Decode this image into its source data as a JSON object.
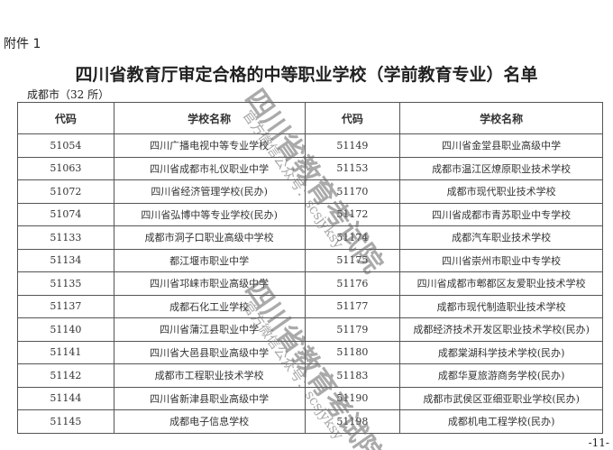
{
  "attachment": "附件 1",
  "title": "四川省教育厅审定合格的中等职业学校（学前教育专业）名单",
  "region": "成都市（32 所）",
  "headers": [
    "代码",
    "学校名称",
    "代码",
    "学校名称"
  ],
  "rows": [
    [
      "51054",
      "四川广播电视中等专业学校",
      "51149",
      "四川省金堂县职业高级中学"
    ],
    [
      "51063",
      "四川省成都市礼仪职业中学",
      "51153",
      "成都市温江区燎原职业技术学校"
    ],
    [
      "51072",
      "四川省经济管理学校(民办)",
      "51170",
      "成都市现代职业技术学校"
    ],
    [
      "51074",
      "四川省弘博中等专业学校(民办)",
      "51172",
      "四川省成都市青苏职业中专学校"
    ],
    [
      "51133",
      "成都市洞子口职业高级中学校",
      "51174",
      "成都汽车职业技术学校"
    ],
    [
      "51134",
      "都江堰市职业中学",
      "51175",
      "四川省崇州市职业中专学校"
    ],
    [
      "51135",
      "四川省邛崃市职业高级中学",
      "51176",
      "四川省成都市郫都区友爱职业技术学校"
    ],
    [
      "51137",
      "成都石化工业学校",
      "51177",
      "成都市现代制造职业技术学校"
    ],
    [
      "51140",
      "四川省蒲江县职业中学",
      "51179",
      "成都经济技术开发区职业技术学校(民办)"
    ],
    [
      "51141",
      "四川省大邑县职业高级中学",
      "51180",
      "成都棠湖科学技术学校(民办)"
    ],
    [
      "51142",
      "成都市工程职业技术学校",
      "51183",
      "成都华夏旅游商务学校(民办)"
    ],
    [
      "51144",
      "四川省新津县职业高级中学",
      "51190",
      "成都市武侯区亚细亚职业学校(民办)"
    ],
    [
      "51145",
      "成都电子信息学校",
      "51198",
      "成都机电工程学校(民办)"
    ]
  ],
  "page_number": "-11-",
  "watermark": {
    "org": "四川省教育考试院",
    "account": "官方微信公众号：scsjyksy"
  }
}
